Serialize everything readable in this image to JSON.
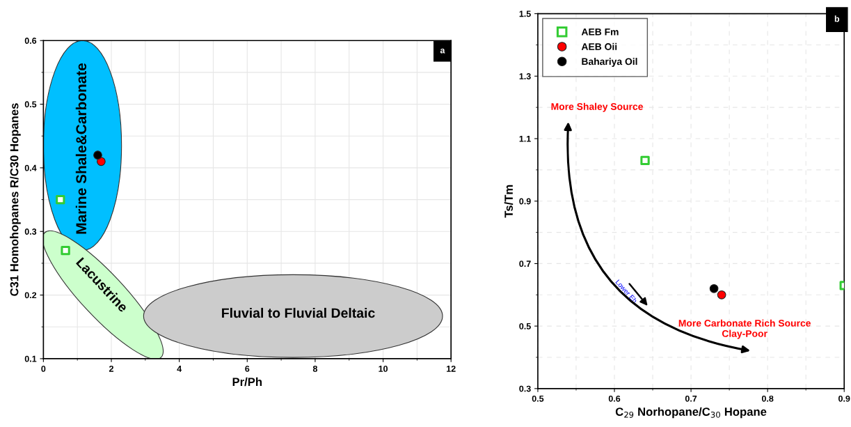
{
  "chart_data": [
    {
      "type": "scatter",
      "xlabel": "Pr/Ph",
      "ylabel": "C31 Homohopanes R/C30 Hopanes",
      "xlim": [
        0,
        12
      ],
      "ylim": [
        0.1,
        0.6
      ],
      "xticks": [
        0,
        2,
        4,
        6,
        8,
        10,
        12
      ],
      "yticks": [
        0.1,
        0.2,
        0.3,
        0.4,
        0.5,
        0.6
      ],
      "grid": true,
      "legend": false,
      "annotations": [
        "a",
        "Marine Shale&Carbonate",
        "Lacustrine",
        "Fluvial to Fluvial Deltaic"
      ],
      "series": [
        {
          "color": "#33cc33",
          "marker": "square",
          "x": [
            0.5,
            0.65
          ],
          "values": [
            0.35,
            0.27
          ]
        },
        {
          "color": "#ff0000",
          "marker": "circle",
          "x": [
            1.7
          ],
          "values": [
            0.41
          ]
        },
        {
          "color": "#000000",
          "marker": "circle",
          "x": [
            1.6
          ],
          "values": [
            0.42
          ]
        }
      ]
    },
    {
      "type": "scatter",
      "xlabel": "C$_{29}$ Norhopane/C$_{30}$ Hopane",
      "ylabel": "Ts/Tm",
      "xlim": [
        0.5,
        0.9
      ],
      "ylim": [
        0.3,
        1.5
      ],
      "xticks": [
        0.5,
        0.6,
        0.7,
        0.8,
        0.9
      ],
      "yticks": [
        0.3,
        0.5,
        0.7,
        0.9,
        1.1,
        1.3,
        1.5
      ],
      "grid": true,
      "legend": "top left",
      "annotations": [
        "b",
        "More Shaley Source",
        "Lower Eh",
        "More Carbonate Rich Source\nClay-Poor"
      ],
      "series": [
        {
          "name": "AEB Fm",
          "color": "#33cc33",
          "marker": "square",
          "x": [
            0.64,
            0.9
          ],
          "values": [
            1.03,
            0.63
          ]
        },
        {
          "name": "AEB Oii",
          "color": "#ff0000",
          "marker": "circle",
          "x": [
            0.74
          ],
          "values": [
            0.6
          ]
        },
        {
          "name": "Bahariya Oil",
          "color": "#000000",
          "marker": "circle",
          "x": [
            0.73
          ],
          "values": [
            0.62
          ]
        }
      ]
    }
  ]
}
